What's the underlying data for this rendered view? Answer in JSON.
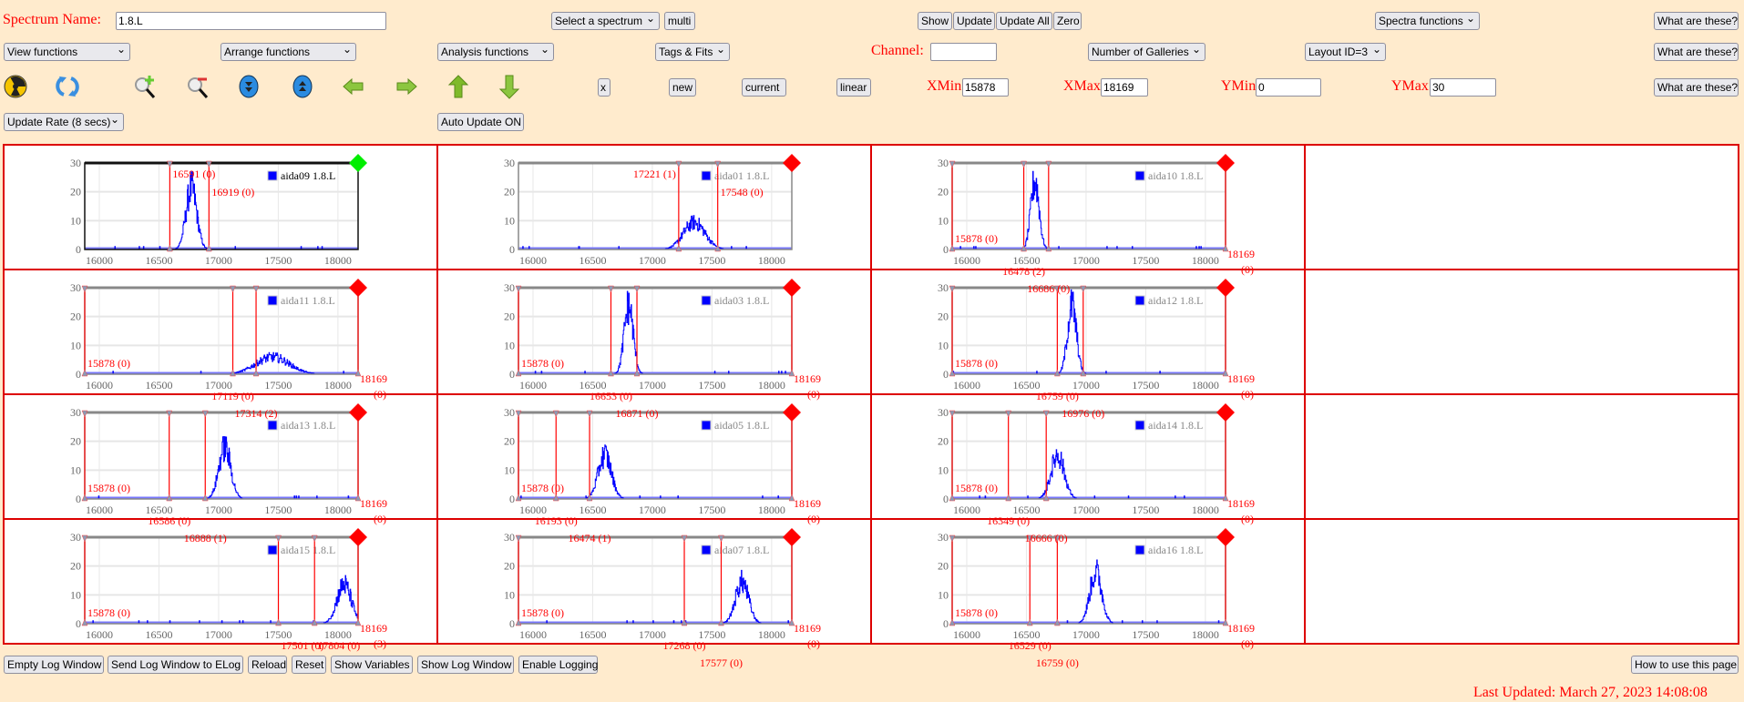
{
  "header": {
    "spectrum_name_label": "Spectrum Name:",
    "spectrum_name_value": "1.8.L",
    "select_spectrum": "Select a spectrum",
    "multi": "multi",
    "show": "Show",
    "update": "Update",
    "update_all": "Update All",
    "zero": "Zero",
    "spectra_functions": "Spectra functions",
    "what_are_these": "What are these?",
    "view_functions": "View functions",
    "arrange_functions": "Arrange functions",
    "analysis_functions": "Analysis functions",
    "tags_fits": "Tags & Fits",
    "channel_label": "Channel:",
    "channel_value": "",
    "number_of_galleries": "Number of Galleries",
    "layout_id": "Layout ID=3",
    "x_button": "x",
    "new_button": "new",
    "current_button": "current",
    "linear_button": "linear",
    "xmin_label": "XMin",
    "xmin_value": "15878",
    "xmax_label": "XMax",
    "xmax_value": "18169",
    "ymin_label": "YMin",
    "ymin_value": "0",
    "ymax_label": "YMax",
    "ymax_value": "30",
    "update_rate": "Update Rate (8 secs)",
    "auto_update": "Auto Update ON",
    "icons": [
      "radiation-icon",
      "refresh-icon",
      "zoom-in-icon",
      "zoom-out-icon",
      "expand-down-icon",
      "expand-up-icon",
      "arrow-left-icon",
      "arrow-right-icon",
      "arrow-up-icon",
      "arrow-down-icon"
    ]
  },
  "footer": {
    "empty_log": "Empty Log Window",
    "send_log": "Send Log Window to ELog",
    "reload": "Reload",
    "reset": "Reset",
    "show_variables": "Show Variables",
    "show_log": "Show Log Window",
    "enable_logging": "Enable Logging",
    "how_to": "How to use this page",
    "last_updated": "Last Updated: March 27, 2023 14:08:08"
  },
  "colors": {
    "label_red": "#ff0000",
    "grid_border": "#dd0000",
    "trace": "#0000ff",
    "selected_marker": "#00ee00",
    "marker": "#ff0000"
  },
  "chart_data": {
    "type": "bar",
    "xlim": [
      15878,
      18169
    ],
    "ylim": [
      0,
      30
    ],
    "x_ticks": [
      "16000",
      "16500",
      "17000",
      "17500",
      "18000"
    ],
    "y_ticks": [
      "0",
      "10",
      "20",
      "30"
    ],
    "grid": true,
    "legend": "top-right",
    "charts": [
      {
        "legend": "aida09 1.8.L",
        "selected": true,
        "edges": false,
        "peak_channel": 16770,
        "peak_counts": 25,
        "width": 45,
        "cursors": [
          {
            "channel": 16591,
            "label": "16591 (0)"
          },
          {
            "channel": 16919,
            "label": "16919 (0)"
          }
        ]
      },
      {
        "legend": "aida01 1.8.L",
        "selected": false,
        "edges": false,
        "peak_channel": 17350,
        "peak_counts": 11,
        "width": 90,
        "cursors": [
          {
            "channel": 17221,
            "label": "17221 (1)"
          },
          {
            "channel": 17548,
            "label": "17548 (0)"
          }
        ]
      },
      {
        "legend": "aida10 1.8.L",
        "selected": false,
        "edges": true,
        "peak_channel": 16570,
        "peak_counts": 28,
        "width": 35,
        "min_label": "15878 (0)",
        "max_label": "18169",
        "max_count": "(0)",
        "cursors": [
          {
            "channel": 16478,
            "label": "16478 (2)"
          },
          {
            "channel": 16686,
            "label": "16686 (0)"
          }
        ]
      },
      {
        "legend": "aida11 1.8.L",
        "selected": false,
        "edges": true,
        "peak_channel": 17450,
        "peak_counts": 7,
        "width": 140,
        "min_label": "15878 (0)",
        "max_label": "18169",
        "max_count": "(0)",
        "cursors": [
          {
            "channel": 17119,
            "label": "17119 (0)"
          },
          {
            "channel": 17314,
            "label": "17314 (2)"
          }
        ]
      },
      {
        "legend": "aida03 1.8.L",
        "selected": false,
        "edges": true,
        "peak_channel": 16800,
        "peak_counts": 28,
        "width": 38,
        "min_label": "15878 (0)",
        "max_label": "18169",
        "max_count": "(0)",
        "cursors": [
          {
            "channel": 16653,
            "label": "16653 (0)"
          },
          {
            "channel": 16871,
            "label": "16871 (0)"
          }
        ]
      },
      {
        "legend": "aida12 1.8.L",
        "selected": false,
        "edges": true,
        "peak_channel": 16880,
        "peak_counts": 28,
        "width": 38,
        "min_label": "15878 (0)",
        "max_label": "18169",
        "max_count": "(0)",
        "cursors": [
          {
            "channel": 16759,
            "label": "16759 (0)"
          },
          {
            "channel": 16976,
            "label": "16976 (0)"
          }
        ]
      },
      {
        "legend": "aida13 1.8.L",
        "selected": false,
        "edges": true,
        "peak_channel": 17050,
        "peak_counts": 21,
        "width": 50,
        "min_label": "15878 (0)",
        "max_label": "18169",
        "max_count": "(0)",
        "cursors": [
          {
            "channel": 16586,
            "label": "16586 (0)"
          },
          {
            "channel": 16888,
            "label": "16888 (1)"
          }
        ]
      },
      {
        "legend": "aida05 1.8.L",
        "selected": false,
        "edges": true,
        "peak_channel": 16600,
        "peak_counts": 18,
        "width": 55,
        "min_label": "15878 (0)",
        "max_label": "18169",
        "max_count": "(0)",
        "cursors": [
          {
            "channel": 16193,
            "label": "16193 (0)"
          },
          {
            "channel": 16474,
            "label": "16474 (1)"
          }
        ]
      },
      {
        "legend": "aida14 1.8.L",
        "selected": false,
        "edges": true,
        "peak_channel": 16760,
        "peak_counts": 18,
        "width": 55,
        "min_label": "15878 (0)",
        "max_label": "18169",
        "max_count": "(0)",
        "cursors": [
          {
            "channel": 16349,
            "label": "16349 (0)"
          },
          {
            "channel": 16666,
            "label": "16666 (0)"
          }
        ]
      },
      {
        "legend": "aida15 1.8.L",
        "selected": false,
        "edges": true,
        "peak_channel": 18050,
        "peak_counts": 16,
        "width": 60,
        "min_label": "15878 (0)",
        "max_label": "18169",
        "max_count": "(3)",
        "cursors": [
          {
            "channel": 17501,
            "label": "17501 (0)"
          },
          {
            "channel": 17804,
            "label": "17804 (0)"
          }
        ]
      },
      {
        "legend": "aida07 1.8.L",
        "selected": false,
        "edges": true,
        "peak_channel": 17750,
        "peak_counts": 17,
        "width": 55,
        "min_label": "15878 (0)",
        "max_label": "18169",
        "max_count": "(0)",
        "cursors": [
          {
            "channel": 17268,
            "label": "17268 (0)"
          },
          {
            "channel": 17577,
            "label": "17577 (0)"
          }
        ]
      },
      {
        "legend": "aida16 1.8.L",
        "selected": false,
        "edges": true,
        "peak_channel": 17080,
        "peak_counts": 21,
        "width": 50,
        "min_label": "15878 (0)",
        "max_label": "18169",
        "max_count": "(0)",
        "cursors": [
          {
            "channel": 16529,
            "label": "16529 (0)"
          },
          {
            "channel": 16759,
            "label": "16759 (0)"
          }
        ]
      }
    ]
  }
}
